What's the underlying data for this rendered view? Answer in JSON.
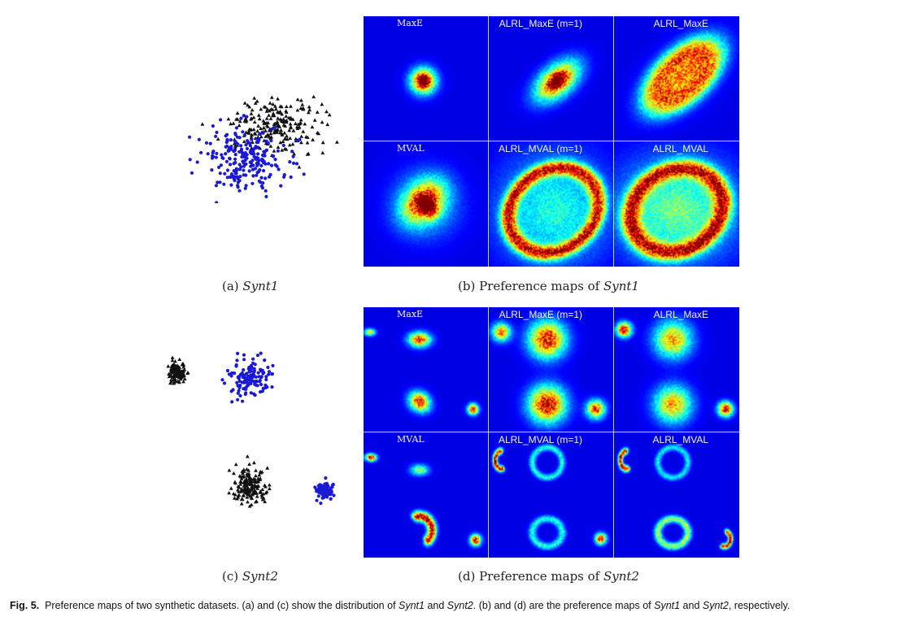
{
  "figure": {
    "caption": {
      "label": "Fig. 5.",
      "text_parts": [
        {
          "t": "Preference maps of two synthetic datasets. (a) and (c) show the distribution of ",
          "i": false
        },
        {
          "t": "Synt1",
          "i": true
        },
        {
          "t": " and ",
          "i": false
        },
        {
          "t": "Synt2",
          "i": true
        },
        {
          "t": ". (b) and (d) are the preference maps of ",
          "i": false
        },
        {
          "t": "Synt1",
          "i": true
        },
        {
          "t": " and ",
          "i": false
        },
        {
          "t": "Synt2",
          "i": true
        },
        {
          "t": ", respectively.",
          "i": false
        }
      ]
    },
    "subcaptions": {
      "a": {
        "prefix": "(a) ",
        "name": "Synt1"
      },
      "b": {
        "prefix": "(b) Preference maps of ",
        "name": "Synt1"
      },
      "c": {
        "prefix": "(c) ",
        "name": "Synt2"
      },
      "d": {
        "prefix": "(d) Preference maps of ",
        "name": "Synt2"
      }
    },
    "panel_titles": [
      "MaxE",
      "ALRL_MaxE (m=1)",
      "ALRL_MaxE",
      "MVAL",
      "ALRL_MVAL (m=1)",
      "ALRL_MVAL"
    ],
    "colors": {
      "class1": "#1a1ad6",
      "class2": "#111111",
      "map_background": "#00128a",
      "grid_line": "#bcd0f0"
    },
    "heatmap_colormap": "jet",
    "marker_shapes": {
      "class1": "circle",
      "class2": "triangle"
    }
  }
}
